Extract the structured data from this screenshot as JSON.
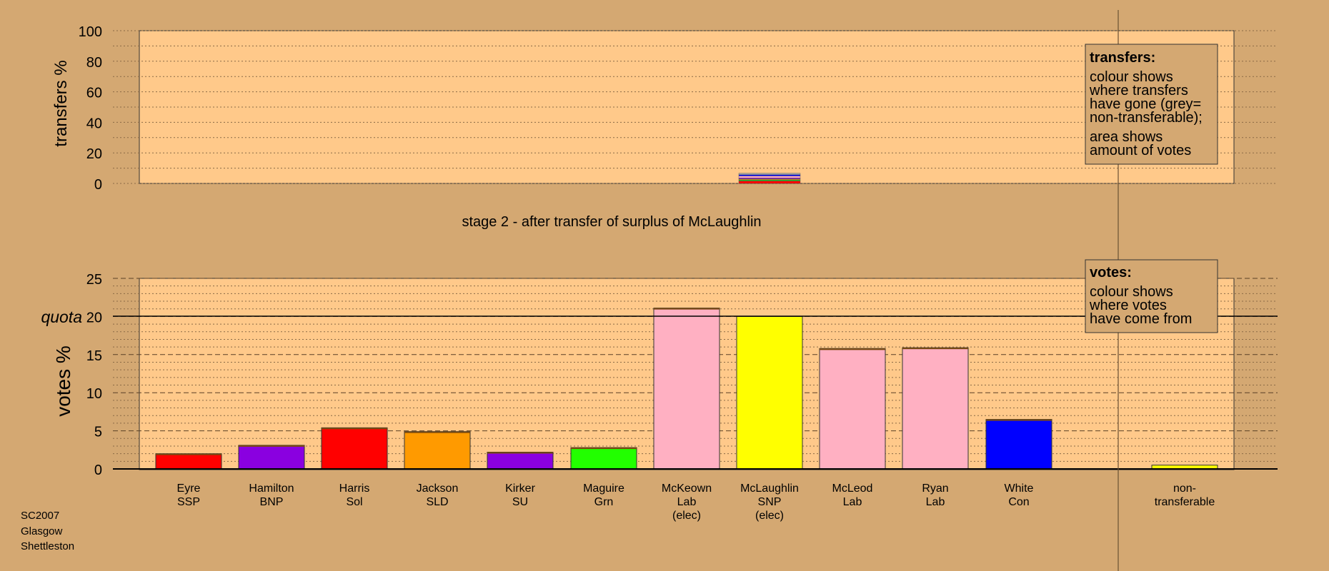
{
  "chart_data": [
    {
      "type": "bar",
      "panel": "transfers",
      "ylabel": "transfers %",
      "ylim": [
        0,
        100
      ],
      "yticks": [
        0,
        20,
        40,
        60,
        80,
        100
      ],
      "grid": "dotted",
      "transfer_bar_candidate": "McLaughlin",
      "transfer_segments": [
        {
          "colour": "#ff0000",
          "value": 1.6
        },
        {
          "colour": "#22bb22",
          "value": 0.8
        },
        {
          "colour": "#ff9a00",
          "value": 0.6
        },
        {
          "colour": "#8a00e0",
          "value": 0.6
        },
        {
          "colour": "#ffb0c2",
          "value": 1.3
        },
        {
          "colour": "#0000ff",
          "value": 0.8
        },
        {
          "colour": "#a8a8a8",
          "value": 1.0
        }
      ]
    },
    {
      "type": "bar",
      "panel": "votes",
      "ylabel": "votes %",
      "ylim": [
        0,
        25
      ],
      "yticks": [
        0,
        5,
        10,
        15,
        20,
        25
      ],
      "quota": 20,
      "quota_label": "quota",
      "grid": "dashed",
      "categories": [
        "Eyre SSP",
        "Hamilton BNP",
        "Harris Sol",
        "Jackson SLD",
        "Kirker SU",
        "Maguire Grn",
        "McKeown Lab (elec)",
        "McLaughlin SNP (elec)",
        "McLeod Lab",
        "Ryan Lab",
        "White Con",
        "non-transferable"
      ],
      "candidates": [
        {
          "name": "Eyre",
          "party": "SSP",
          "elected": "",
          "colour": "#ff0000",
          "value": 2.0,
          "transfer": 0.15
        },
        {
          "name": "Hamilton",
          "party": "BNP",
          "elected": "",
          "colour": "#8a00e0",
          "value": 3.1,
          "transfer": 0.05
        },
        {
          "name": "Harris",
          "party": "Sol",
          "elected": "",
          "colour": "#ff0000",
          "value": 5.4,
          "transfer": 0.15
        },
        {
          "name": "Jackson",
          "party": "SLD",
          "elected": "",
          "colour": "#ff9a00",
          "value": 4.9,
          "transfer": 0.1
        },
        {
          "name": "Kirker",
          "party": "SU",
          "elected": "",
          "colour": "#8a00e0",
          "value": 2.2,
          "transfer": 0.05
        },
        {
          "name": "Maguire",
          "party": "Grn",
          "elected": "",
          "colour": "#22ff00",
          "value": 2.8,
          "transfer": 0.1
        },
        {
          "name": "McKeown",
          "party": "Lab",
          "elected": "(elec)",
          "colour": "#ffb0c2",
          "value": 21.1,
          "transfer": 0.1
        },
        {
          "name": "McLaughlin",
          "party": "SNP",
          "elected": "(elec)",
          "colour": "#ffff00",
          "value": 20.0,
          "transfer": 0
        },
        {
          "name": "McLeod",
          "party": "Lab",
          "elected": "",
          "colour": "#ffb0c2",
          "value": 15.8,
          "transfer": 0.2
        },
        {
          "name": "Ryan",
          "party": "Lab",
          "elected": "",
          "colour": "#ffb0c2",
          "value": 15.9,
          "transfer": 0.15
        },
        {
          "name": "White",
          "party": "Con",
          "elected": "",
          "colour": "#0000ff",
          "value": 6.5,
          "transfer": 0.1
        },
        {
          "name": "non-",
          "party": "transferable",
          "elected": "",
          "colour": "#ffff00",
          "value": 0.5,
          "transfer": 0
        }
      ]
    }
  ],
  "stage_title": "stage 2 - after transfer of surplus of McLaughlin",
  "legend_transfers": {
    "title": "transfers:",
    "lines1": [
      "colour shows",
      "where transfers",
      "have gone (grey=",
      "non-transferable);"
    ],
    "lines2": [
      "area shows",
      "amount of votes"
    ]
  },
  "legend_votes": {
    "title": "votes:",
    "lines": [
      "colour shows",
      "where votes",
      "have come from"
    ]
  },
  "footer": [
    "SC2007",
    "Glasgow",
    "Shettleston"
  ],
  "colors": {
    "background": "#d4a872",
    "plot_bg": "#ffc98a",
    "legend_bg": "#d4a872"
  }
}
